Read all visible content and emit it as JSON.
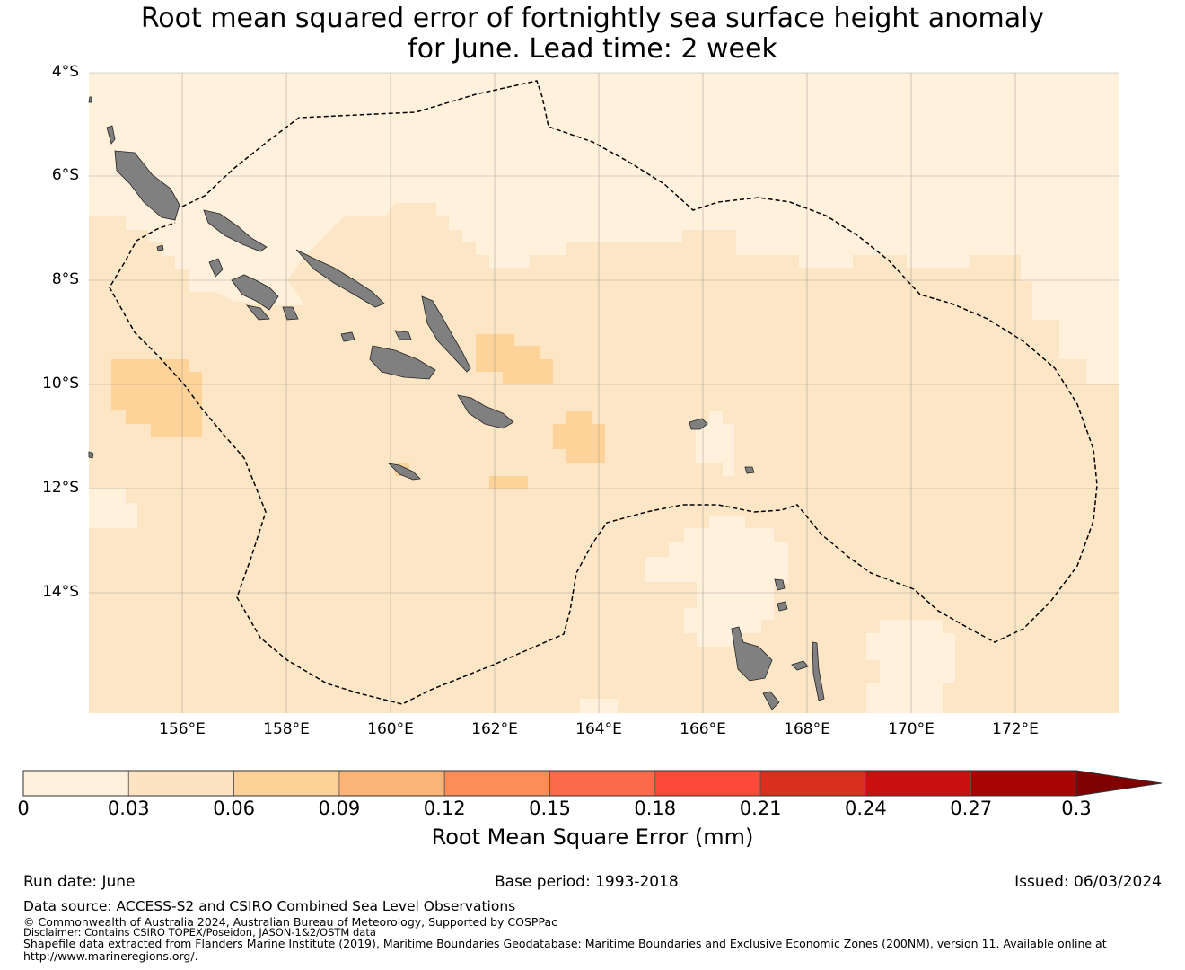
{
  "title": {
    "line1": "Root mean squared error of fortnightly sea surface height anomaly",
    "line2": "for June. Lead time: 2 week"
  },
  "map": {
    "lat_labels": [
      "4°S",
      "6°S",
      "8°S",
      "10°S",
      "12°S",
      "14°S"
    ],
    "lon_labels": [
      "156°E",
      "158°E",
      "160°E",
      "162°E",
      "164°E",
      "166°E",
      "168°E",
      "170°E",
      "172°E"
    ],
    "lat_range": [
      -16.3,
      -4.0
    ],
    "lon_range": [
      154.2,
      174.0
    ],
    "colors": {
      "background": "#fde6c6",
      "lighter": "#fff1dc",
      "darker": "#fdd39a",
      "land": "#808080",
      "eez_line": "#000000",
      "grid": "#7a7a7a"
    }
  },
  "colorbar": {
    "label": "Root Mean Square Error (mm)",
    "ticks": [
      "0",
      "0.03",
      "0.06",
      "0.09",
      "0.12",
      "0.15",
      "0.18",
      "0.21",
      "0.24",
      "0.27",
      "0.3"
    ],
    "colors": [
      "#fff1dc",
      "#fde3c2",
      "#fdd197",
      "#fcb478",
      "#fc8d59",
      "#fc6a4a",
      "#fb4b38",
      "#d7301f",
      "#c8110e",
      "#a80404",
      "#7f0000"
    ]
  },
  "footer": {
    "run_date": "Run date: June",
    "base_period": "Base period: 1993-2018",
    "issued": "Issued: 06/03/2024",
    "data_source": "Data source: ACCESS-S2 and CSIRO Combined Sea Level Observations",
    "copyright": "© Commonwealth of Australia 2024, Australian Bureau of Meteorology, Supported by COSPPac",
    "disclaimer": "Disclaimer: Contains CSIRO TOPEX/Poseidon, JASON-1&2/OSTM data",
    "shapefile1": "Shapefile data extracted from Flanders Marine Institute (2019), Maritime Boundaries Geodatabase: Maritime Boundaries and Exclusive Economic Zones (200NM), version 11. Available online at",
    "shapefile2": "http://www.marineregions.org/."
  }
}
